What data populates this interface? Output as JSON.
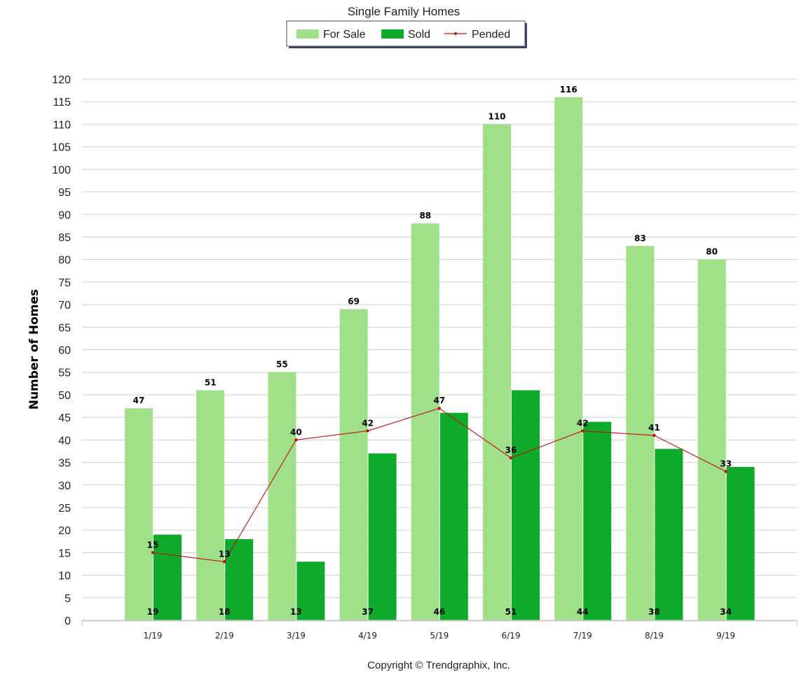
{
  "chart_data": {
    "type": "bar",
    "title": "Single Family Homes",
    "ylabel": "Number of Homes",
    "xlabel": "",
    "categories": [
      "1/19",
      "2/19",
      "3/19",
      "4/19",
      "5/19",
      "6/19",
      "7/19",
      "8/19",
      "9/19"
    ],
    "ylim": [
      0,
      120
    ],
    "yticks": [
      0,
      5,
      10,
      15,
      20,
      25,
      30,
      35,
      40,
      45,
      50,
      55,
      60,
      65,
      70,
      75,
      80,
      85,
      90,
      95,
      100,
      105,
      110,
      115,
      120
    ],
    "grid": true,
    "legend_position": "top-center",
    "series": [
      {
        "name": "For Sale",
        "kind": "bar",
        "color": "#a0e088",
        "values": [
          47,
          51,
          55,
          69,
          88,
          110,
          116,
          83,
          80
        ]
      },
      {
        "name": "Sold",
        "kind": "bar",
        "color": "#0eab2a",
        "values": [
          19,
          18,
          13,
          37,
          46,
          51,
          44,
          38,
          34
        ]
      },
      {
        "name": "Pended",
        "kind": "line",
        "color": "#c01010",
        "values": [
          15,
          13,
          40,
          42,
          47,
          36,
          42,
          41,
          33
        ]
      }
    ]
  },
  "footer": {
    "copyright": "Copyright © Trendgraphix, Inc."
  }
}
